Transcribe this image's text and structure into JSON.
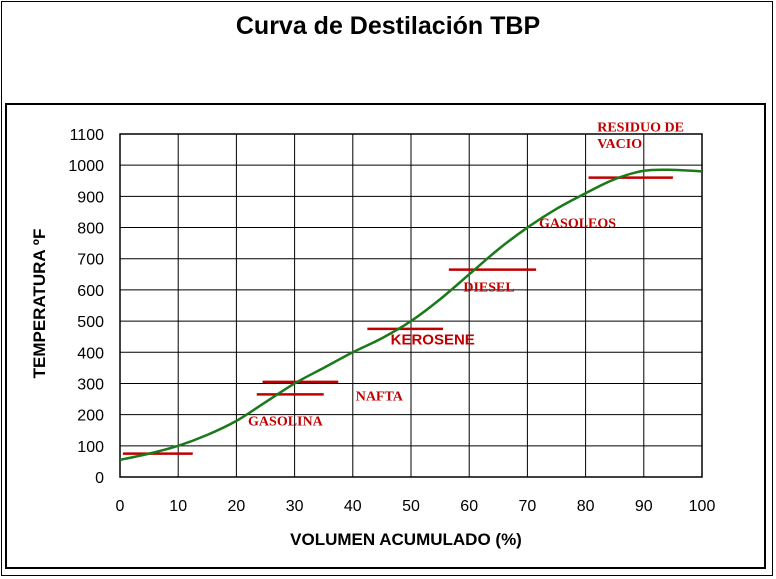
{
  "chart_data": {
    "type": "line",
    "title": "Curva de Destilación TBP",
    "xlabel": "VOLUMEN ACUMULADO (%)",
    "ylabel": "TEMPERATURA ºF",
    "xlim": [
      0,
      100
    ],
    "ylim": [
      0,
      1100
    ],
    "xticks": [
      0,
      10,
      20,
      30,
      40,
      50,
      60,
      70,
      80,
      90,
      100
    ],
    "yticks": [
      0,
      100,
      200,
      300,
      400,
      500,
      600,
      700,
      800,
      900,
      1000,
      1100
    ],
    "grid": true,
    "series": [
      {
        "color": "#1a7a1a",
        "x": [
          0,
          5,
          10,
          15,
          20,
          25,
          30,
          35,
          40,
          45,
          50,
          55,
          60,
          65,
          70,
          75,
          80,
          85,
          90,
          95,
          100
        ],
        "y": [
          55,
          75,
          100,
          135,
          180,
          240,
          300,
          350,
          400,
          445,
          500,
          570,
          650,
          730,
          800,
          860,
          910,
          955,
          982,
          985,
          980
        ]
      }
    ],
    "cut_color": "#c00000",
    "cuts": [
      {
        "x1": 0.5,
        "x2": 12.5,
        "y": 75
      },
      {
        "x1": 23.5,
        "x2": 35,
        "y": 265
      },
      {
        "x1": 24.5,
        "x2": 37.5,
        "y": 305
      },
      {
        "x1": 42.5,
        "x2": 55.5,
        "y": 475
      },
      {
        "x1": 56.5,
        "x2": 71.5,
        "y": 665
      },
      {
        "x1": 80.5,
        "x2": 95,
        "y": 960
      }
    ],
    "annotations": [
      {
        "text": "GASOLINA",
        "x": 22,
        "y": 165,
        "style": "serif"
      },
      {
        "text": "NAFTA",
        "x": 40.5,
        "y": 245,
        "style": "serif"
      },
      {
        "text": "KEROSENE",
        "x": 46.5,
        "y": 425,
        "style": "sans"
      },
      {
        "text": "DIESEL",
        "x": 59,
        "y": 595,
        "style": "serif"
      },
      {
        "text": "GASOLEOS",
        "x": 72,
        "y": 800,
        "style": "serif"
      },
      {
        "text": "RESIDUO DE",
        "x": 82,
        "y": 1108,
        "style": "serif"
      },
      {
        "text": "VACIO",
        "x": 82,
        "y": 1055,
        "style": "serif"
      }
    ]
  }
}
